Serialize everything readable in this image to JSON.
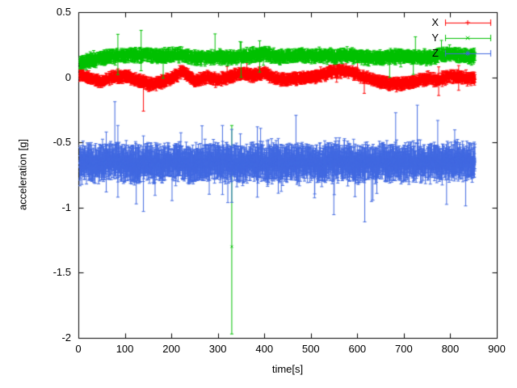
{
  "chart_data": {
    "type": "scatter",
    "title": "",
    "xlabel": "time[s]",
    "ylabel": "acceleration [g]",
    "xlim": [
      0,
      900
    ],
    "ylim": [
      -2,
      0.5
    ],
    "xticks": {
      "values": [
        0,
        100,
        200,
        300,
        400,
        500,
        600,
        700,
        800,
        900
      ],
      "labels": [
        "0",
        "100",
        "200",
        "300",
        "400",
        "500",
        "600",
        "700",
        "800",
        "900"
      ]
    },
    "yticks": {
      "values": [
        -2,
        -1.5,
        -1,
        -0.5,
        0,
        0.5
      ],
      "labels": [
        "-2",
        "-1.5",
        "-1",
        "-0.5",
        "0",
        "0.5"
      ]
    },
    "grid": false,
    "background": "#ffffff",
    "axis_color": "#000000",
    "text_color": "#000000",
    "legend": {
      "position": "top-right",
      "box": false
    },
    "sample": {
      "t_start": 3,
      "t_end": 853,
      "t_step": 0.5
    },
    "trend_t": [
      0,
      25,
      50,
      75,
      100,
      125,
      150,
      175,
      200,
      225,
      250,
      275,
      300,
      325,
      350,
      375,
      400,
      425,
      450,
      475,
      500,
      525,
      550,
      575,
      600,
      625,
      650,
      675,
      700,
      725,
      750,
      775,
      800,
      825,
      850
    ],
    "series": [
      {
        "name": "X",
        "color": "#ff0000",
        "marker": "plus",
        "style": "errorbars",
        "noise": 0.012,
        "err": 0.028,
        "spike_prob": 0.004,
        "spike_mult": 2.5,
        "trend": [
          0.02,
          -0.01,
          -0.03,
          0.0,
          0.01,
          -0.02,
          -0.05,
          -0.04,
          -0.01,
          0.05,
          -0.03,
          0.0,
          -0.02,
          0.0,
          0.03,
          0.01,
          0.03,
          -0.01,
          -0.02,
          -0.01,
          0.0,
          0.02,
          0.05,
          0.05,
          0.02,
          -0.01,
          -0.04,
          -0.05,
          -0.05,
          -0.03,
          -0.01,
          -0.02,
          0.01,
          0.0,
          -0.01
        ],
        "outliers": [
          {
            "t": 140,
            "y": -0.07,
            "lo": -0.26,
            "hi": 0.02
          },
          {
            "t": 390,
            "y": 0.06,
            "lo": -0.01,
            "hi": 0.12
          },
          {
            "t": 775,
            "y": -0.02,
            "lo": -0.14,
            "hi": 0.08
          },
          {
            "t": 818,
            "y": 0.0,
            "lo": -0.1,
            "hi": 0.09
          }
        ]
      },
      {
        "name": "Y",
        "color": "#00c000",
        "marker": "times",
        "style": "errorbars",
        "noise": 0.012,
        "err": 0.032,
        "spike_prob": 0.006,
        "spike_mult": 3.0,
        "trend": [
          0.1,
          0.13,
          0.15,
          0.16,
          0.17,
          0.17,
          0.17,
          0.16,
          0.17,
          0.17,
          0.15,
          0.15,
          0.16,
          0.15,
          0.16,
          0.17,
          0.18,
          0.16,
          0.16,
          0.17,
          0.16,
          0.17,
          0.16,
          0.17,
          0.16,
          0.15,
          0.15,
          0.16,
          0.16,
          0.16,
          0.15,
          0.17,
          0.18,
          0.16,
          0.16
        ],
        "outliers": [
          {
            "t": 85,
            "y": 0.17,
            "lo": 0.02,
            "hi": 0.33
          },
          {
            "t": 135,
            "y": 0.18,
            "lo": 0.05,
            "hi": 0.36
          },
          {
            "t": 330,
            "y": -1.3,
            "lo": -1.97,
            "hi": -0.37
          },
          {
            "t": 350,
            "y": 0.16,
            "lo": 0.0,
            "hi": 0.27
          },
          {
            "t": 390,
            "y": 0.17,
            "lo": 0.04,
            "hi": 0.28
          }
        ]
      },
      {
        "name": "Z",
        "color": "#4169e1",
        "marker": "asterisk",
        "style": "errorbars",
        "noise": 0.03,
        "err": 0.085,
        "spike_prob": 0.02,
        "spike_mult": 2.4,
        "trend": [
          -0.66,
          -0.65,
          -0.66,
          -0.64,
          -0.66,
          -0.67,
          -0.65,
          -0.66,
          -0.65,
          -0.66,
          -0.67,
          -0.65,
          -0.64,
          -0.66,
          -0.67,
          -0.65,
          -0.66,
          -0.65,
          -0.66,
          -0.66,
          -0.65,
          -0.66,
          -0.64,
          -0.65,
          -0.66,
          -0.66,
          -0.65,
          -0.65,
          -0.66,
          -0.65,
          -0.64,
          -0.66,
          -0.65,
          -0.65,
          -0.65
        ],
        "outliers": [
          {
            "t": 60,
            "y": -0.65,
            "lo": -0.88,
            "hi": -0.42
          },
          {
            "t": 85,
            "y": -0.63,
            "lo": -0.92,
            "hi": -0.37
          },
          {
            "t": 140,
            "y": -0.68,
            "lo": -1.03,
            "hi": -0.45
          },
          {
            "t": 310,
            "y": -0.62,
            "lo": -0.9,
            "hi": -0.37
          },
          {
            "t": 330,
            "y": -0.66,
            "lo": -0.96,
            "hi": -0.4
          },
          {
            "t": 385,
            "y": -0.64,
            "lo": -0.92,
            "hi": -0.38
          },
          {
            "t": 430,
            "y": -0.66,
            "lo": -0.89,
            "hi": -0.47
          }
        ]
      }
    ]
  }
}
